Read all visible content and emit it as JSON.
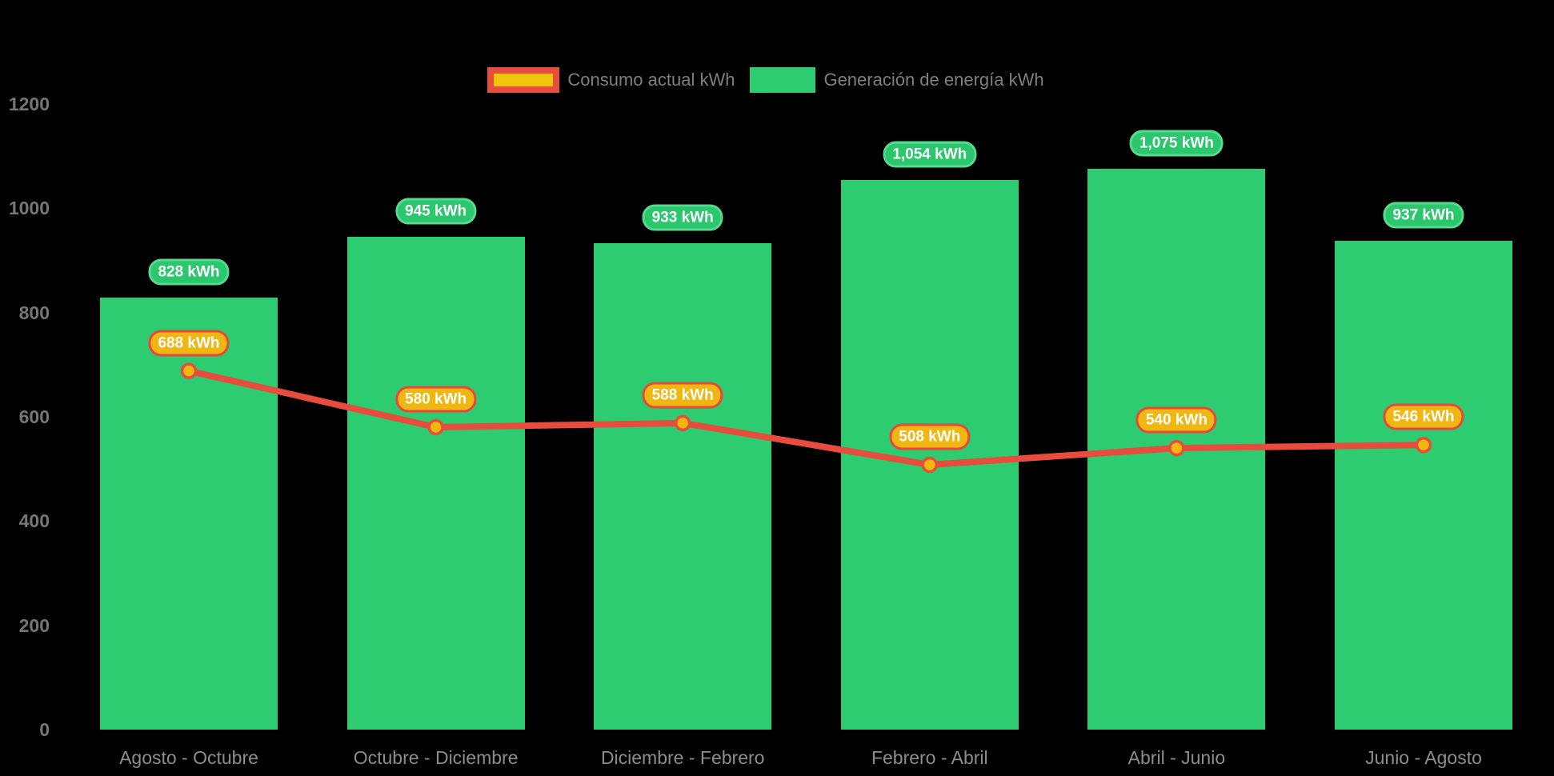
{
  "colors": {
    "background": "#000000",
    "bar_fill": "#2ecc71",
    "bar_pill_fill": "#2bc76d",
    "bar_pill_border": "#56d991",
    "line_stroke": "#e74c3c",
    "point_fill": "#f1b70e",
    "line_pill_fill": "#f0b611",
    "line_pill_border": "#e7483b",
    "axis_tick_text": "#767676",
    "category_text": "#8d8d8d",
    "legend_text": "#7f7f7f"
  },
  "legend": {
    "items": [
      {
        "label": "Consumo actual kWh",
        "swatch": "line-series"
      },
      {
        "label": "Generación de energía kWh",
        "swatch": "bar-series"
      }
    ]
  },
  "chart_data": {
    "type": "bar+line",
    "title": "",
    "xlabel": "",
    "ylabel": "",
    "ylim": [
      0,
      1200
    ],
    "grid": false,
    "legend_position": "top",
    "categories": [
      "Agosto - Octubre",
      "Octubre - Diciembre",
      "Diciembre - Febrero",
      "Febrero - Abril",
      "Abril - Junio",
      "Junio - Agosto"
    ],
    "yticks": [
      {
        "value": 0,
        "label": "0"
      },
      {
        "value": 200,
        "label": "200"
      },
      {
        "value": 400,
        "label": "400"
      },
      {
        "value": 600,
        "label": "600"
      },
      {
        "value": 800,
        "label": "800"
      },
      {
        "value": 1000,
        "label": "1000"
      },
      {
        "value": 1200,
        "label": "1200"
      }
    ],
    "series": [
      {
        "name": "Generación de energía kWh",
        "type": "bar",
        "values": [
          828,
          945,
          933,
          1054,
          1075,
          937
        ],
        "labels": [
          "828 kWh",
          "945 kWh",
          "933 kWh",
          "1,054 kWh",
          "1,075 kWh",
          "937 kWh"
        ]
      },
      {
        "name": "Consumo actual kWh",
        "type": "line",
        "values": [
          688,
          580,
          588,
          508,
          540,
          546
        ],
        "labels": [
          "688 kWh",
          "580 kWh",
          "588 kWh",
          "508 kWh",
          "540 kWh",
          "546 kWh"
        ]
      }
    ]
  }
}
